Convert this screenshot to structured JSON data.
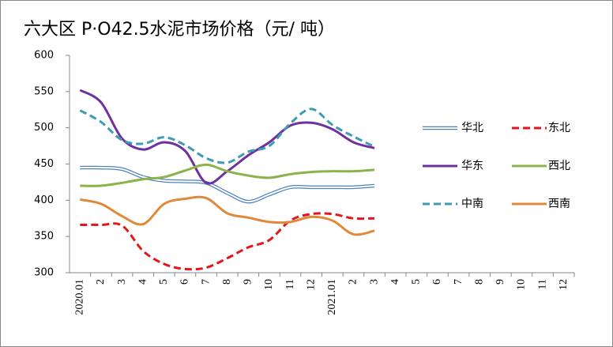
{
  "chart_data": {
    "type": "line",
    "title": "六大区 P·O42.5水泥市场价格（元/ 吨）",
    "categories": [
      "2020.01",
      "2",
      "3",
      "4",
      "5",
      "6",
      "7",
      "8",
      "9",
      "10",
      "11",
      "12",
      "2021.01",
      "2",
      "3",
      "4",
      "5",
      "6",
      "7",
      "8",
      "9",
      "10",
      "11",
      "12"
    ],
    "ylim": [
      300,
      600
    ],
    "yticks": [
      300,
      350,
      400,
      450,
      500,
      550,
      600
    ],
    "series": [
      {
        "name": "华北",
        "color": "#4f81bd",
        "style": "double",
        "values": [
          445,
          445,
          443,
          432,
          427,
          426,
          424,
          410,
          398,
          408,
          418,
          418,
          418,
          418,
          420,
          null,
          null,
          null,
          null,
          null,
          null,
          null,
          null,
          null
        ]
      },
      {
        "name": "东北",
        "color": "#e3161c",
        "style": "dashed",
        "values": [
          366,
          366,
          365,
          330,
          312,
          305,
          307,
          320,
          335,
          345,
          372,
          381,
          381,
          375,
          375,
          null,
          null,
          null,
          null,
          null,
          null,
          null,
          null,
          null
        ]
      },
      {
        "name": "华东",
        "color": "#7030a0",
        "style": "solid",
        "values": [
          552,
          535,
          485,
          470,
          480,
          468,
          424,
          440,
          462,
          480,
          503,
          507,
          498,
          480,
          472,
          null,
          null,
          null,
          null,
          null,
          null,
          null,
          null,
          null
        ]
      },
      {
        "name": "西北",
        "color": "#8cb24a",
        "style": "solid",
        "values": [
          420,
          420,
          424,
          429,
          432,
          441,
          449,
          440,
          434,
          431,
          436,
          439,
          440,
          440,
          442,
          null,
          null,
          null,
          null,
          null,
          null,
          null,
          null,
          null
        ]
      },
      {
        "name": "中南",
        "color": "#3d9bb5",
        "style": "dashed",
        "values": [
          524,
          508,
          483,
          478,
          487,
          476,
          458,
          452,
          467,
          475,
          506,
          526,
          504,
          488,
          474,
          null,
          null,
          null,
          null,
          null,
          null,
          null,
          null,
          null
        ]
      },
      {
        "name": "西南",
        "color": "#e0893a",
        "style": "solid",
        "values": [
          401,
          395,
          378,
          367,
          395,
          402,
          403,
          382,
          376,
          370,
          370,
          377,
          372,
          353,
          358,
          null,
          null,
          null,
          null,
          null,
          null,
          null,
          null,
          null
        ]
      }
    ]
  }
}
